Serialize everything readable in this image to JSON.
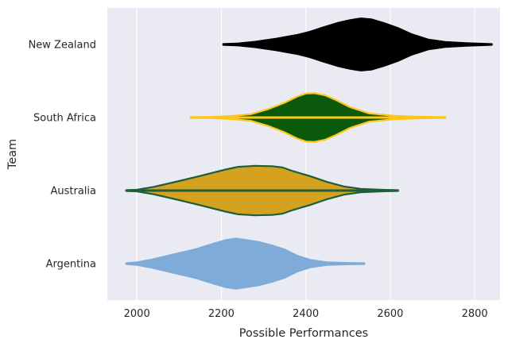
{
  "chart_data": {
    "type": "violin",
    "xlabel": "Possible Performances",
    "ylabel": "Team",
    "xlim": [
      1930,
      2860
    ],
    "x_ticks": [
      2000,
      2200,
      2400,
      2600,
      2800
    ],
    "grid": "vertical",
    "background": "#eaeaf2",
    "categories": [
      "New Zealand",
      "South Africa",
      "Australia",
      "Argentina"
    ],
    "series": [
      {
        "name": "New Zealand",
        "fill": "#000000",
        "edge": "#000000",
        "min": 2205,
        "max": 2840,
        "profile": [
          [
            2205,
            0.2
          ],
          [
            2240,
            0.5
          ],
          [
            2280,
            1.3
          ],
          [
            2330,
            2.8
          ],
          [
            2380,
            4.6
          ],
          [
            2410,
            6.2
          ],
          [
            2440,
            8.2
          ],
          [
            2475,
            10.4
          ],
          [
            2505,
            11.8
          ],
          [
            2530,
            12.6
          ],
          [
            2555,
            12.2
          ],
          [
            2585,
            10.4
          ],
          [
            2620,
            7.8
          ],
          [
            2650,
            5.0
          ],
          [
            2690,
            2.4
          ],
          [
            2730,
            1.2
          ],
          [
            2780,
            0.6
          ],
          [
            2840,
            0.2
          ]
        ]
      },
      {
        "name": "South Africa",
        "fill": "#0b5a0b",
        "edge": "#ffc61a",
        "min": 2128,
        "max": 2730,
        "profile": [
          [
            2128,
            0.2
          ],
          [
            2180,
            0.3
          ],
          [
            2230,
            0.8
          ],
          [
            2270,
            1.6
          ],
          [
            2310,
            4.0
          ],
          [
            2350,
            7.2
          ],
          [
            2380,
            10.2
          ],
          [
            2400,
            11.6
          ],
          [
            2420,
            11.8
          ],
          [
            2445,
            10.8
          ],
          [
            2470,
            8.6
          ],
          [
            2505,
            5.0
          ],
          [
            2550,
            2.0
          ],
          [
            2610,
            0.8
          ],
          [
            2670,
            0.4
          ],
          [
            2730,
            0.2
          ]
        ]
      },
      {
        "name": "Australia",
        "fill": "#d4a21f",
        "edge": "#1f5e3a",
        "min": 1975,
        "max": 2618,
        "profile": [
          [
            1975,
            0.2
          ],
          [
            2000,
            0.4
          ],
          [
            2040,
            1.8
          ],
          [
            2100,
            4.6
          ],
          [
            2160,
            7.6
          ],
          [
            2210,
            10.2
          ],
          [
            2240,
            11.5
          ],
          [
            2280,
            12.0
          ],
          [
            2320,
            11.8
          ],
          [
            2345,
            11.2
          ],
          [
            2370,
            9.4
          ],
          [
            2410,
            7.0
          ],
          [
            2450,
            4.2
          ],
          [
            2490,
            2.0
          ],
          [
            2530,
            0.8
          ],
          [
            2580,
            0.4
          ],
          [
            2618,
            0.2
          ]
        ]
      },
      {
        "name": "Argentina",
        "fill": "#7eabd7",
        "edge": "#7eabd7",
        "min": 1975,
        "max": 2538,
        "profile": [
          [
            1975,
            0.2
          ],
          [
            2000,
            0.6
          ],
          [
            2040,
            2.2
          ],
          [
            2090,
            4.6
          ],
          [
            2140,
            7.0
          ],
          [
            2180,
            9.6
          ],
          [
            2210,
            11.4
          ],
          [
            2235,
            12.1
          ],
          [
            2260,
            11.4
          ],
          [
            2290,
            10.4
          ],
          [
            2320,
            8.8
          ],
          [
            2350,
            6.8
          ],
          [
            2380,
            3.8
          ],
          [
            2410,
            1.8
          ],
          [
            2450,
            0.6
          ],
          [
            2500,
            0.3
          ],
          [
            2538,
            0.2
          ]
        ]
      }
    ]
  }
}
